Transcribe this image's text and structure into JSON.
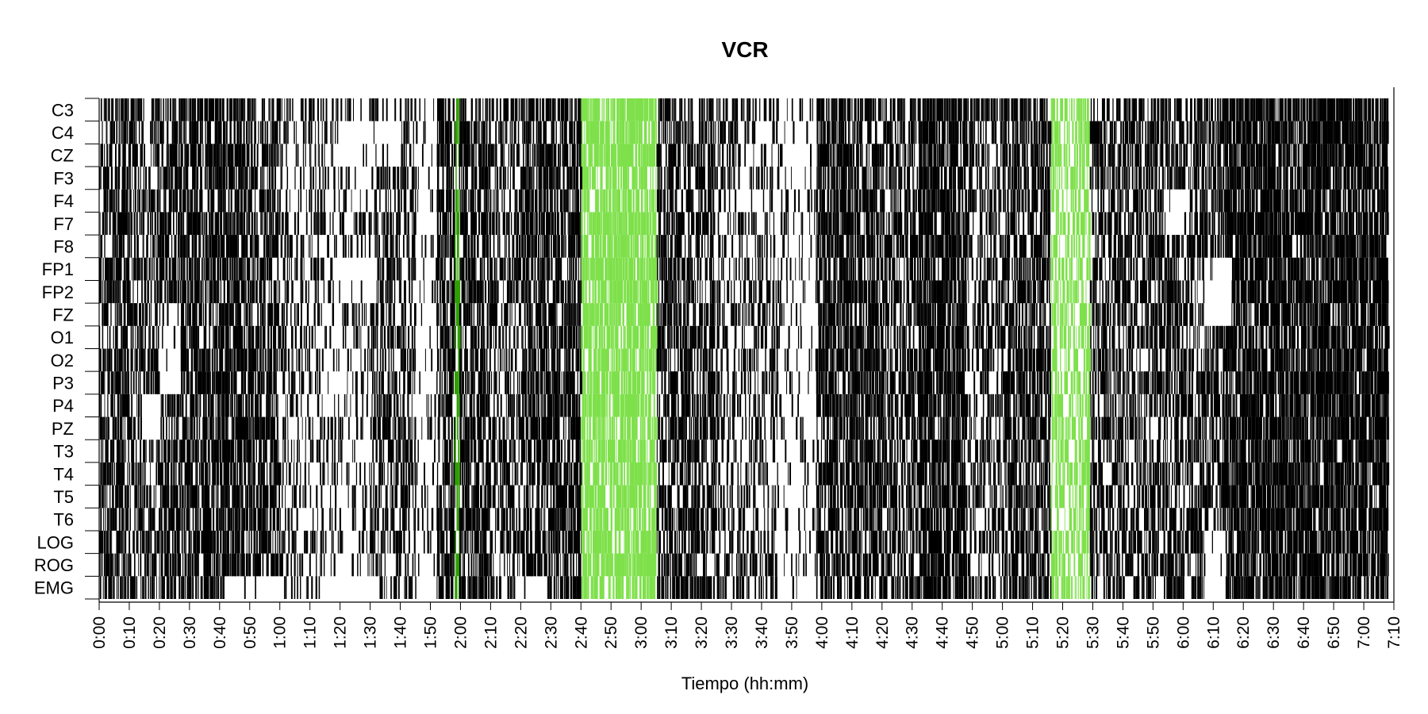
{
  "chart_data": {
    "type": "heatmap",
    "title": "VCR",
    "xlabel": "Tiempo (hh:mm)",
    "ylabel": "",
    "channels": [
      "C3",
      "C4",
      "CZ",
      "F3",
      "F4",
      "F7",
      "F8",
      "FP1",
      "FP2",
      "FZ",
      "O1",
      "O2",
      "P3",
      "P4",
      "PZ",
      "T3",
      "T4",
      "T5",
      "T6",
      "LOG",
      "ROG",
      "EMG"
    ],
    "xlim_minutes": [
      0,
      430
    ],
    "x_tick_labels": [
      "0:00",
      "0:10",
      "0:20",
      "0:30",
      "0:40",
      "0:50",
      "1:00",
      "1:10",
      "1:20",
      "1:30",
      "1:40",
      "1:50",
      "2:00",
      "2:10",
      "2:20",
      "2:30",
      "2:40",
      "2:50",
      "3:00",
      "3:10",
      "3:20",
      "3:30",
      "3:40",
      "3:50",
      "4:00",
      "4:10",
      "4:20",
      "4:30",
      "4:40",
      "4:50",
      "5:00",
      "5:10",
      "5:20",
      "5:30",
      "5:40",
      "5:50",
      "6:00",
      "6:10",
      "6:20",
      "6:30",
      "6:40",
      "6:50",
      "7:00",
      "7:10"
    ],
    "data_end_minutes": 428,
    "colors": {
      "event": "#000000",
      "green_light": "#7ee04a",
      "green_dark": "#2e9e00",
      "background": "#ffffff"
    },
    "activity_profile": [
      {
        "start": 0,
        "end": 10,
        "density": 0.55
      },
      {
        "start": 10,
        "end": 20,
        "density": 0.45
      },
      {
        "start": 20,
        "end": 35,
        "density": 0.6
      },
      {
        "start": 35,
        "end": 50,
        "density": 0.65
      },
      {
        "start": 50,
        "end": 60,
        "density": 0.5
      },
      {
        "start": 60,
        "end": 75,
        "density": 0.28
      },
      {
        "start": 75,
        "end": 90,
        "density": 0.22
      },
      {
        "start": 90,
        "end": 105,
        "density": 0.45
      },
      {
        "start": 105,
        "end": 112,
        "density": 0.08
      },
      {
        "start": 112,
        "end": 130,
        "density": 0.62
      },
      {
        "start": 130,
        "end": 140,
        "density": 0.4
      },
      {
        "start": 140,
        "end": 160,
        "density": 0.6
      },
      {
        "start": 160,
        "end": 185,
        "density": 0.7
      },
      {
        "start": 185,
        "end": 204,
        "density": 0.55
      },
      {
        "start": 204,
        "end": 225,
        "density": 0.3
      },
      {
        "start": 225,
        "end": 238,
        "density": 0.12
      },
      {
        "start": 238,
        "end": 260,
        "density": 0.65
      },
      {
        "start": 260,
        "end": 272,
        "density": 0.5
      },
      {
        "start": 272,
        "end": 288,
        "density": 0.75
      },
      {
        "start": 288,
        "end": 300,
        "density": 0.35
      },
      {
        "start": 300,
        "end": 318,
        "density": 0.55
      },
      {
        "start": 318,
        "end": 336,
        "density": 0.45
      },
      {
        "start": 336,
        "end": 373,
        "density": 0.5
      },
      {
        "start": 373,
        "end": 400,
        "density": 0.75
      },
      {
        "start": 400,
        "end": 428,
        "density": 0.78
      }
    ],
    "sparse_bands": [
      {
        "channels": [
          "EMG"
        ],
        "start": 42,
        "end": 60
      },
      {
        "channels": [
          "EMG"
        ],
        "start": 73,
        "end": 92
      },
      {
        "channels": [
          "EMG"
        ],
        "start": 138,
        "end": 148
      },
      {
        "channels": [
          "FP1",
          "FP2"
        ],
        "start": 80,
        "end": 92
      },
      {
        "channels": [
          "C4",
          "CZ"
        ],
        "start": 80,
        "end": 100
      },
      {
        "channels": [
          "FZ",
          "O1",
          "O2",
          "P3"
        ],
        "start": 20,
        "end": 27
      },
      {
        "channels": [
          "P4",
          "PZ"
        ],
        "start": 15,
        "end": 20
      },
      {
        "channels": [
          "FP1",
          "FP2",
          "FZ"
        ],
        "start": 367,
        "end": 376
      },
      {
        "channels": [
          "LOG",
          "ROG",
          "EMG"
        ],
        "start": 367,
        "end": 374
      },
      {
        "channels": [
          "F4",
          "F7"
        ],
        "start": 354,
        "end": 362
      }
    ],
    "highlight_ranges_minutes": [
      {
        "start": 118,
        "end": 119.5,
        "color": "green_dark"
      },
      {
        "start": 160,
        "end": 185,
        "color": "green_light"
      },
      {
        "start": 316,
        "end": 329,
        "color": "green_light"
      }
    ],
    "grid": false,
    "legend": "none"
  }
}
